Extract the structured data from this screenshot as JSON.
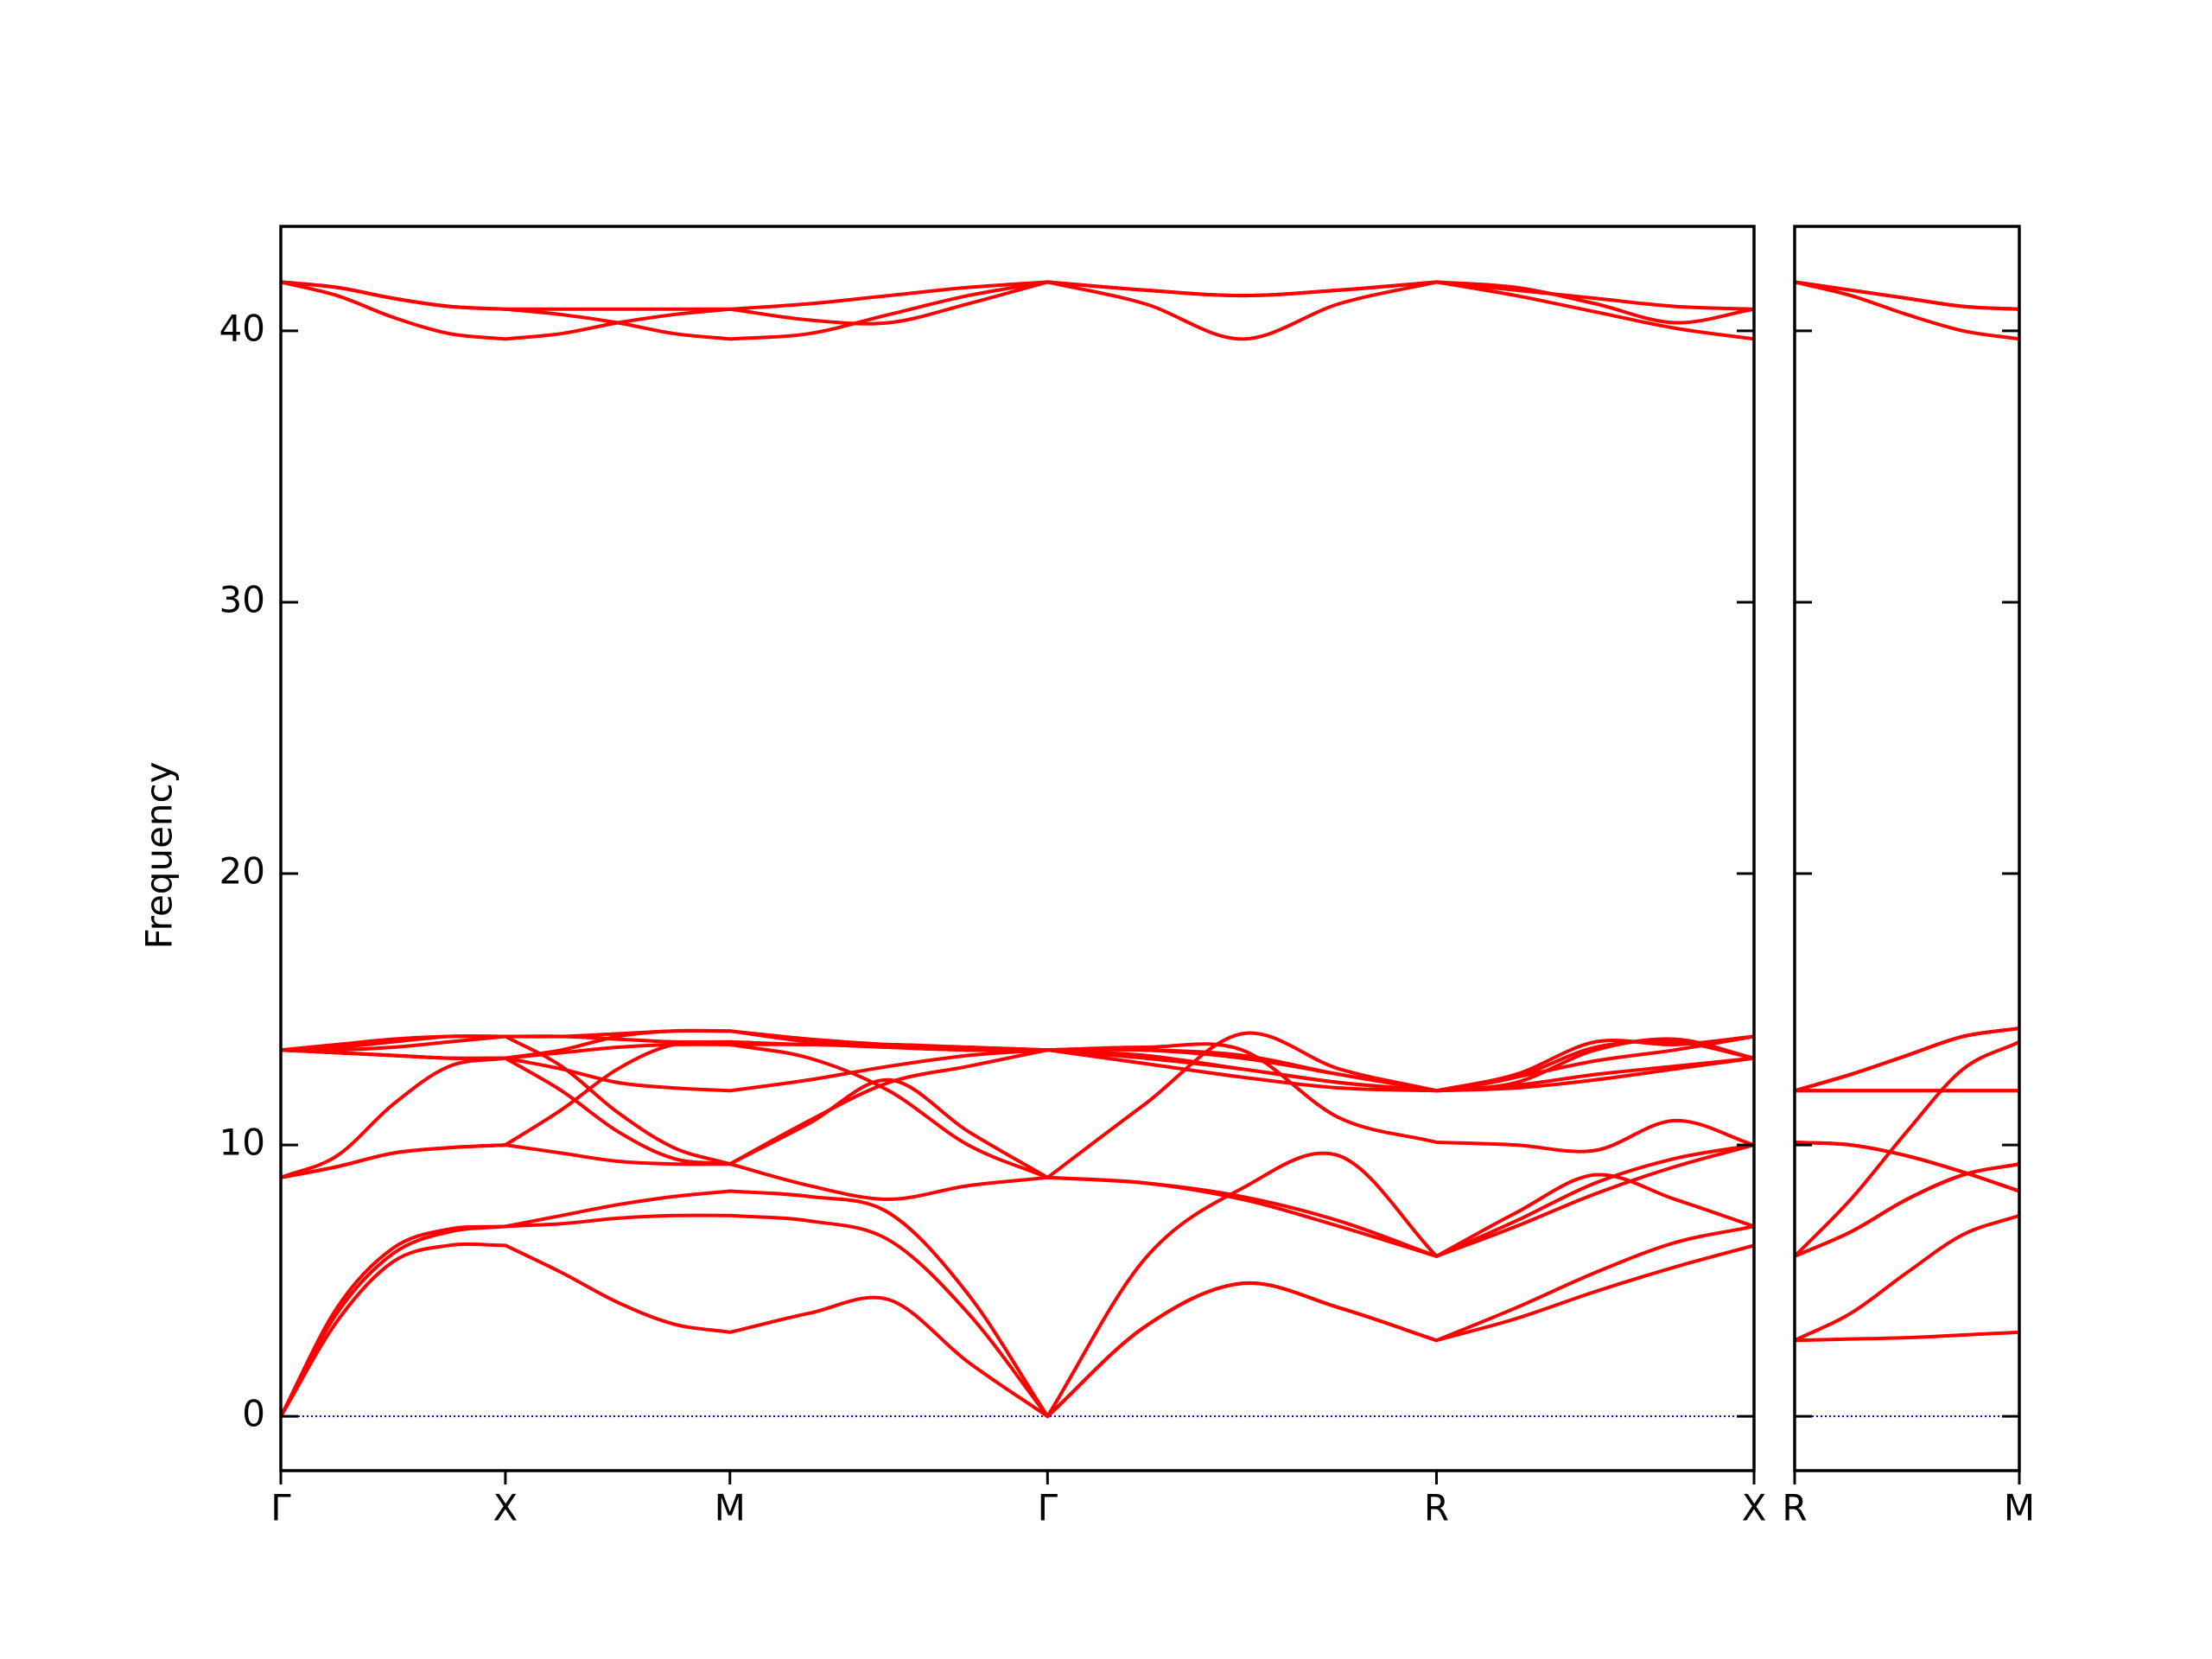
{
  "chart_data": [
    {
      "type": "line",
      "ylabel": "Frequency",
      "color": "#ff0000",
      "x": [
        0,
        0.25,
        0.5,
        0.75,
        1,
        1.25,
        1.5,
        1.75,
        2,
        2.3536,
        2.7071,
        3.0607,
        3.4142,
        3.8472,
        4.2802,
        4.7132,
        5.1463,
        5.5,
        5.8536,
        6.2071,
        6.5605
      ],
      "xlim": [
        0,
        6.5605
      ],
      "xticks": [
        {
          "value": 0,
          "label": "Γ"
        },
        {
          "value": 1,
          "label": "X"
        },
        {
          "value": 2,
          "label": "M"
        },
        {
          "value": 3.4142,
          "label": "Γ"
        },
        {
          "value": 5.1463,
          "label": "R"
        },
        {
          "value": 6.5605,
          "label": "X"
        }
      ],
      "ylim": [
        -2,
        43.85
      ],
      "yticks": [
        0,
        10,
        20,
        30,
        40
      ],
      "show_ytick_labels": true,
      "zero_line": {
        "value": 0,
        "color": "#0000cc"
      },
      "series": [
        {
          "values": [
            0,
            3.5,
            5.7,
            6.3,
            6.3,
            5.3,
            4.2,
            3.4,
            3.1,
            3.8,
            4.3,
            2.0,
            0,
            3.3,
            4.9,
            4.0,
            2.8,
            3.6,
            4.6,
            5.5,
            6.3
          ]
        },
        {
          "values": [
            0,
            3.8,
            6.0,
            6.8,
            7.0,
            7.1,
            7.3,
            7.4,
            7.4,
            7.2,
            6.5,
            3.8,
            0,
            5.8,
            8.4,
            9.6,
            5.9,
            7.0,
            8.2,
            9.2,
            10.0
          ]
        },
        {
          "values": [
            0,
            4.0,
            6.2,
            6.9,
            7.0,
            7.4,
            7.8,
            8.1,
            8.3,
            8.1,
            7.5,
            4.5,
            0,
            3.3,
            4.9,
            4.0,
            2.8,
            4.0,
            5.3,
            6.4,
            7.0
          ]
        },
        {
          "values": [
            8.8,
            9.2,
            9.7,
            9.9,
            10.0,
            9.7,
            9.4,
            9.3,
            9.3,
            8.5,
            8.0,
            8.5,
            8.8,
            8.6,
            8.0,
            7.0,
            5.9,
            7.2,
            8.6,
            9.5,
            10.0
          ]
        },
        {
          "values": [
            8.8,
            9.6,
            11.5,
            12.9,
            13.2,
            12.0,
            10.5,
            9.5,
            9.3,
            10.8,
            12.4,
            10.5,
            8.8,
            11.5,
            14.1,
            12.8,
            12.0,
            12.5,
            13.6,
            13.8,
            13.2
          ]
        },
        {
          "values": [
            8.8,
            9.2,
            9.7,
            9.9,
            10.0,
            11.3,
            12.8,
            13.7,
            13.7,
            13.2,
            12.0,
            10.0,
            8.8,
            8.6,
            8.1,
            7.2,
            5.9,
            7.5,
            8.9,
            8.0,
            7.0
          ]
        },
        {
          "values": [
            13.5,
            13.6,
            13.8,
            14.0,
            14.0,
            14.0,
            13.9,
            13.8,
            13.8,
            13.7,
            13.7,
            13.6,
            13.5,
            13.5,
            13.3,
            12.6,
            12.0,
            12.5,
            13.1,
            13.5,
            14.0
          ]
        },
        {
          "values": [
            13.5,
            13.4,
            13.3,
            13.2,
            13.2,
            13.5,
            14.0,
            14.2,
            14.2,
            13.8,
            13.6,
            13.5,
            13.5,
            13.5,
            13.2,
            12.6,
            12.0,
            12.3,
            13.5,
            13.9,
            13.2
          ]
        },
        {
          "values": [
            13.5,
            13.4,
            13.3,
            13.2,
            13.2,
            12.8,
            12.3,
            12.1,
            12.0,
            12.4,
            12.9,
            13.3,
            13.5,
            13.3,
            12.8,
            12.3,
            12.0,
            12.1,
            12.4,
            12.8,
            13.2
          ]
        },
        {
          "values": [
            13.5,
            13.7,
            13.9,
            14.0,
            14.0,
            12.9,
            11.2,
            9.9,
            9.3,
            10.9,
            12.3,
            12.9,
            13.5,
            13.2,
            12.8,
            12.3,
            12.0,
            12.6,
            13.8,
            13.7,
            14.0
          ]
        },
        {
          "values": [
            13.5,
            13.4,
            13.3,
            13.2,
            13.2,
            13.4,
            13.6,
            13.7,
            13.7,
            13.7,
            13.6,
            13.5,
            13.5,
            13.0,
            12.5,
            12.1,
            12.0,
            12.2,
            12.6,
            12.9,
            13.2
          ]
        },
        {
          "values": [
            13.5,
            13.5,
            13.6,
            13.8,
            14.0,
            14.0,
            14.1,
            14.2,
            14.2,
            13.9,
            13.7,
            13.6,
            13.5,
            13.6,
            13.5,
            11.0,
            10.1,
            10.0,
            9.8,
            10.9,
            10.0
          ]
        },
        {
          "values": [
            41.8,
            41.6,
            41.2,
            40.9,
            40.8,
            40.8,
            40.8,
            40.8,
            40.8,
            41.0,
            41.3,
            41.6,
            41.8,
            41.5,
            41.3,
            41.5,
            41.8,
            41.5,
            41.2,
            40.9,
            40.8
          ]
        },
        {
          "values": [
            41.8,
            41.3,
            40.5,
            39.9,
            39.7,
            39.9,
            40.3,
            40.6,
            40.8,
            40.4,
            40.3,
            41.0,
            41.8,
            41.0,
            39.7,
            41.0,
            41.8,
            41.6,
            41.0,
            40.3,
            40.8
          ]
        },
        {
          "values": [
            41.8,
            41.6,
            41.2,
            40.9,
            40.8,
            40.6,
            40.3,
            39.9,
            39.7,
            39.9,
            40.6,
            41.3,
            41.8,
            41.5,
            41.3,
            41.5,
            41.8,
            41.3,
            40.7,
            40.1,
            39.7
          ]
        }
      ]
    },
    {
      "type": "line",
      "color": "#ff0000",
      "x": [
        0,
        0.25,
        0.5,
        0.75,
        1
      ],
      "xlim": [
        0,
        1
      ],
      "xticks": [
        {
          "value": 0,
          "label": "R"
        },
        {
          "value": 1,
          "label": "M"
        }
      ],
      "ylim": [
        -2,
        43.85
      ],
      "yticks": [
        0,
        10,
        20,
        30,
        40
      ],
      "show_ytick_labels": false,
      "zero_line": {
        "value": 0,
        "color": "#0000cc"
      },
      "series": [
        {
          "values": [
            2.8,
            2.85,
            2.9,
            3.0,
            3.1
          ]
        },
        {
          "values": [
            5.9,
            8.0,
            10.5,
            12.8,
            13.8
          ]
        },
        {
          "values": [
            2.8,
            3.8,
            5.3,
            6.7,
            7.4
          ]
        },
        {
          "values": [
            5.9,
            6.8,
            8.0,
            8.9,
            9.3
          ]
        },
        {
          "values": [
            12.0,
            12.6,
            13.3,
            14.0,
            14.3
          ]
        },
        {
          "values": [
            5.9,
            6.8,
            8.0,
            8.9,
            9.3
          ]
        },
        {
          "values": [
            12.0,
            12.0,
            12.0,
            12.0,
            12.0
          ]
        },
        {
          "values": [
            12.0,
            12.6,
            13.3,
            14.0,
            14.3
          ]
        },
        {
          "values": [
            10.1,
            10.0,
            9.6,
            9.0,
            8.3
          ]
        },
        {
          "values": [
            12.0,
            12.0,
            12.0,
            12.0,
            12.0
          ]
        },
        {
          "values": [
            10.1,
            10.0,
            9.6,
            9.0,
            8.3
          ]
        },
        {
          "values": [
            12.0,
            12.6,
            13.3,
            14.0,
            14.3
          ]
        },
        {
          "values": [
            41.8,
            41.5,
            41.2,
            40.9,
            40.8
          ]
        },
        {
          "values": [
            41.8,
            41.3,
            40.6,
            40.0,
            39.7
          ]
        },
        {
          "values": [
            41.8,
            41.5,
            41.2,
            40.9,
            40.8
          ]
        }
      ]
    }
  ]
}
